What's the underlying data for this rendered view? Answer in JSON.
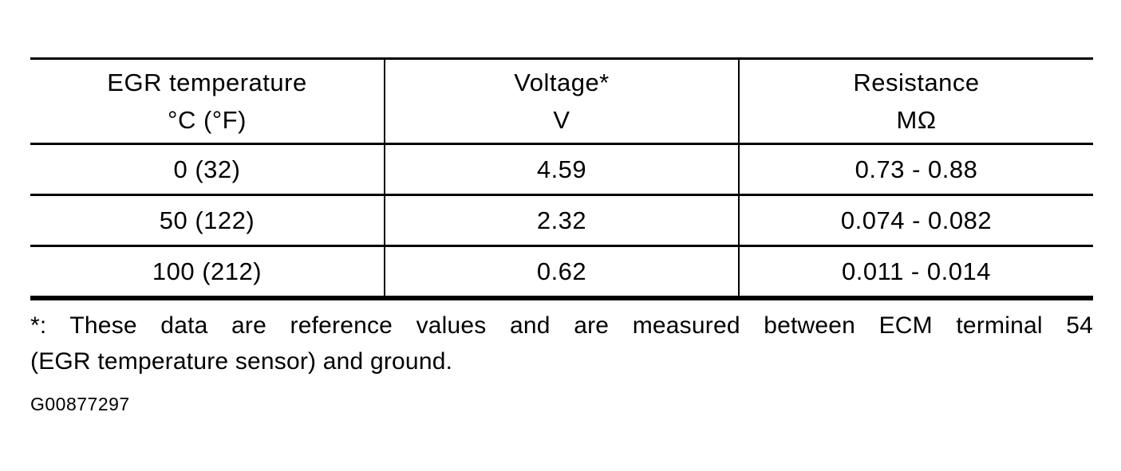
{
  "document": {
    "table": {
      "columns": [
        {
          "label": "EGR temperature",
          "unit": "°C (°F)"
        },
        {
          "label": "Voltage*",
          "unit": "V"
        },
        {
          "label": "Resistance",
          "unit": "MΩ"
        }
      ],
      "rows": [
        {
          "temperature": "0 (32)",
          "voltage": "4.59",
          "resistance": "0.73 - 0.88"
        },
        {
          "temperature": "50 (122)",
          "voltage": "2.32",
          "resistance": "0.074 - 0.082"
        },
        {
          "temperature": "100 (212)",
          "voltage": "0.62",
          "resistance": "0.011 - 0.014"
        }
      ]
    },
    "footnote": {
      "line1": "*: These data are reference values and are measured between ECM terminal 54",
      "line2": "(EGR temperature sensor) and ground."
    },
    "figure_id": "G00877297",
    "colors": {
      "background": "#ffffff",
      "ink": "#000000"
    }
  }
}
